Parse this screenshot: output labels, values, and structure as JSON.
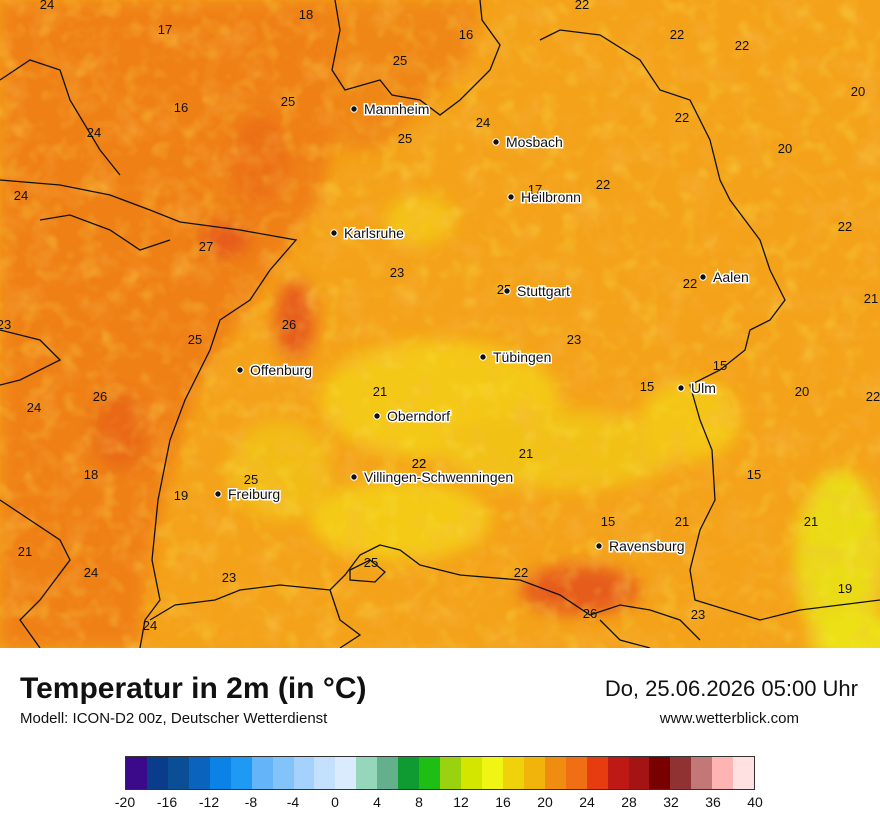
{
  "title": "Temperatur in 2m (in °C)",
  "model": "Modell: ICON-D2 00z, Deutscher Wetterdienst",
  "datetime": "Do, 25.06.2026 05:00 Uhr",
  "website": "www.wetterblick.com",
  "cities": [
    {
      "name": "Mannheim"
    },
    {
      "name": "Mosbach"
    },
    {
      "name": "Heilbronn"
    },
    {
      "name": "Karlsruhe"
    },
    {
      "name": "Stuttgart"
    },
    {
      "name": "Aalen"
    },
    {
      "name": "Tübingen"
    },
    {
      "name": "Offenburg"
    },
    {
      "name": "Ulm"
    },
    {
      "name": "Oberndorf"
    },
    {
      "name": "Villingen-Schwenningen"
    },
    {
      "name": "Freiburg"
    },
    {
      "name": "Ravensburg"
    }
  ],
  "temperature_labels": [
    "24",
    "17",
    "18",
    "16",
    "22",
    "22",
    "22",
    "25",
    "16",
    "25",
    "20",
    "24",
    "25",
    "24",
    "22",
    "20",
    "24",
    "17",
    "22",
    "27",
    "22",
    "23",
    "25",
    "22",
    "21",
    "23",
    "26",
    "23",
    "25",
    "21",
    "15",
    "15",
    "20",
    "22",
    "24",
    "26",
    "21",
    "18",
    "22",
    "21",
    "15",
    "19",
    "25",
    "15",
    "21",
    "21",
    "24",
    "23",
    "25",
    "22",
    "19",
    "24",
    "23",
    "26",
    "22"
  ],
  "legend": {
    "ticks": [
      "-20",
      "-16",
      "-12",
      "-8",
      "-4",
      "0",
      "4",
      "8",
      "12",
      "16",
      "20",
      "24",
      "28",
      "32",
      "36",
      "40"
    ],
    "colors": [
      "#3a0a8a",
      "#0a3c8c",
      "#0a4e96",
      "#0a64be",
      "#0a82e6",
      "#1e9af5",
      "#64b4fa",
      "#82c3fa",
      "#a5d2fc",
      "#c3e1fd",
      "#d9ebfd",
      "#96d7bc",
      "#64af8c",
      "#0f9b32",
      "#1ebe14",
      "#9bd20f",
      "#d2e600",
      "#f0f514",
      "#f0d20a",
      "#f0b40a",
      "#f08c0f",
      "#f06e14",
      "#e63c0f",
      "#be1914",
      "#a51414",
      "#780000",
      "#913232",
      "#c37878",
      "#ffb4b4",
      "#ffe1e1"
    ]
  },
  "palette": {
    "map_base": "#f4a21a",
    "warm": "#ef7d13",
    "hot": "#e5541a",
    "cool": "#f4cf16",
    "cooler": "#e9e514"
  }
}
